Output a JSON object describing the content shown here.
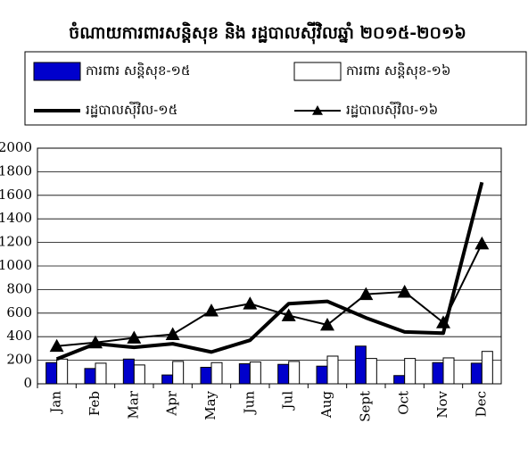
{
  "chart_data": {
    "type": "bar",
    "title": "ចំណាយការពារសន្តិសុខ និង រដ្ឋបាលស៊ីវិលឆ្នាំ ២០១៥-២០១៦",
    "categories": [
      "Jan",
      "Feb",
      "Mar",
      "Apr",
      "May",
      "Jun",
      "Jul",
      "Aug",
      "Sept",
      "Oct",
      "Nov",
      "Dec"
    ],
    "series": [
      {
        "name": "ការពារ សន្តិសុខ-១៥",
        "type": "bar",
        "color": "#0000cc",
        "values": [
          180,
          130,
          210,
          75,
          140,
          170,
          165,
          150,
          320,
          70,
          180,
          175
        ]
      },
      {
        "name": "ការពារ សន្តិសុខ-១៦",
        "type": "bar",
        "color": "#ffffff",
        "values": [
          210,
          175,
          160,
          190,
          180,
          185,
          190,
          235,
          215,
          215,
          220,
          275
        ]
      },
      {
        "name": "រដ្ឋបាលស៊ីវិល-១៥",
        "type": "line",
        "color": "#000000",
        "values": [
          210,
          340,
          310,
          340,
          270,
          370,
          680,
          700,
          560,
          440,
          430,
          1710
        ]
      },
      {
        "name": "រដ្ឋបាលស៊ីវិល-១៦",
        "type": "line",
        "marker": "triangle",
        "color": "#000000",
        "values": [
          320,
          350,
          390,
          420,
          620,
          680,
          580,
          500,
          760,
          780,
          520,
          1190
        ]
      }
    ],
    "ylim": [
      0,
      2000
    ],
    "yticks": [
      0,
      200,
      400,
      600,
      800,
      1000,
      1200,
      1400,
      1600,
      1800,
      2000
    ],
    "grid": true
  }
}
